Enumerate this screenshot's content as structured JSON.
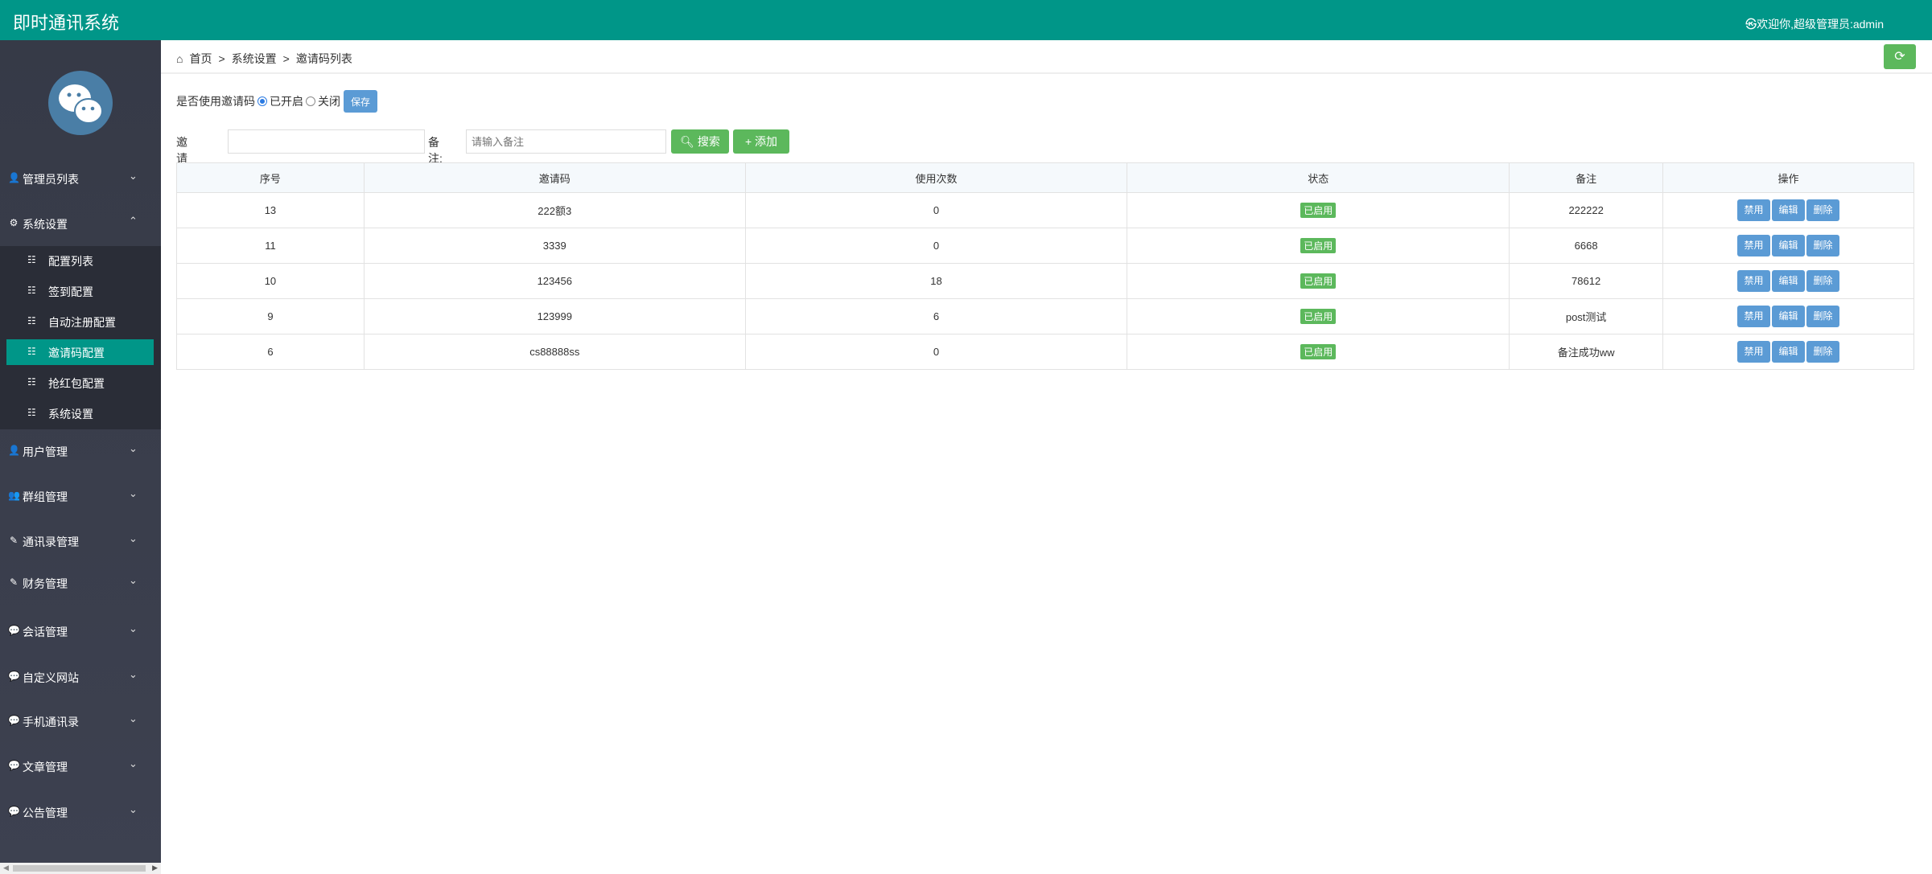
{
  "header": {
    "title": "即时通讯系统",
    "user": "㉿欢迎你,超级管理员:admin"
  },
  "sidebar": {
    "items": [
      {
        "label": "管理员列表",
        "icon": "user-icon",
        "glyph": "👤",
        "chev": "⌄"
      },
      {
        "label": "系统设置",
        "icon": "gear-icon",
        "glyph": "⚙",
        "chev": "⌃"
      },
      {
        "label": "用户管理",
        "icon": "user-icon",
        "glyph": "👤",
        "chev": "⌄"
      },
      {
        "label": "群组管理",
        "icon": "group-icon",
        "glyph": "👥",
        "chev": "⌄"
      },
      {
        "label": "通讯录管理",
        "icon": "edit-icon",
        "glyph": "✎",
        "chev": "⌄"
      },
      {
        "label": "财务管理",
        "icon": "edit-icon",
        "glyph": "✎",
        "chev": "⌄"
      },
      {
        "label": "会话管理",
        "icon": "chat-icon",
        "glyph": "💬",
        "chev": "⌄"
      },
      {
        "label": "自定义网站",
        "icon": "chat-icon",
        "glyph": "💬",
        "chev": "⌄"
      },
      {
        "label": "手机通讯录",
        "icon": "chat-icon",
        "glyph": "💬",
        "chev": "⌄"
      },
      {
        "label": "文章管理",
        "icon": "chat-icon",
        "glyph": "💬",
        "chev": "⌄"
      },
      {
        "label": "公告管理",
        "icon": "chat-icon",
        "glyph": "💬",
        "chev": "⌄"
      }
    ],
    "submenu": [
      {
        "label": "配置列表"
      },
      {
        "label": "签到配置"
      },
      {
        "label": "自动注册配置"
      },
      {
        "label": "邀请码配置",
        "active": true
      },
      {
        "label": "抢红包配置"
      },
      {
        "label": "系统设置"
      }
    ]
  },
  "breadcrumb": [
    "首页",
    ">",
    "系统设置",
    ">",
    "邀请码列表"
  ],
  "toggle": {
    "label": "是否使用邀请码",
    "on_label": "已开启",
    "off_label": "关闭",
    "selected": "on",
    "save": "保存"
  },
  "search": {
    "code_label": "邀请码",
    "code_value": "",
    "remark_label": "备注:",
    "remark_placeholder": "请输入备注",
    "search_btn": "搜索",
    "add_btn": "添加"
  },
  "table": {
    "headers": [
      "序号",
      "邀请码",
      "使用次数",
      "状态",
      "备注",
      "操作"
    ],
    "rows": [
      {
        "id": "13",
        "code": "222额3",
        "uses": "0",
        "status": "已启用",
        "remark": "222222"
      },
      {
        "id": "11",
        "code": "3339",
        "uses": "0",
        "status": "已启用",
        "remark": "6668"
      },
      {
        "id": "10",
        "code": "123456",
        "uses": "18",
        "status": "已启用",
        "remark": "78612"
      },
      {
        "id": "9",
        "code": "123999",
        "uses": "6",
        "status": "已启用",
        "remark": "post测试"
      },
      {
        "id": "6",
        "code": "cs88888ss",
        "uses": "0",
        "status": "已启用",
        "remark": "备注成功ww"
      }
    ],
    "actions": [
      "禁用",
      "编辑",
      "删除"
    ]
  },
  "colors": {
    "header": "#009688",
    "success": "#5cb85c",
    "primary": "#5b9bd5",
    "sidebar": "#393d49"
  }
}
